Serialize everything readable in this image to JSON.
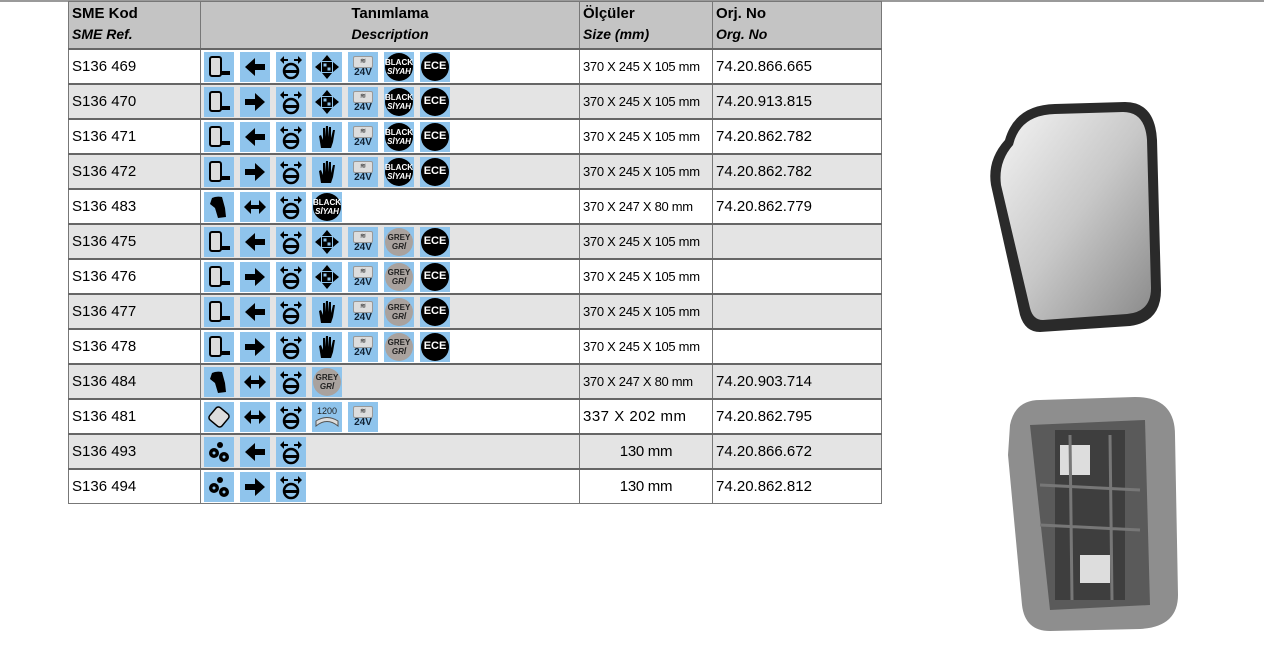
{
  "header": {
    "code": "SME Kod",
    "code_en": "SME Ref.",
    "desc": "Tanımlama",
    "desc_en": "Description",
    "size": "Ölçüler",
    "size_en": "Size (mm)",
    "orig": "Orj. No",
    "orig_en": "Org. No"
  },
  "icon_labels": {
    "v24": "24V",
    "heat": "≋",
    "black": "BLACK",
    "black_tr": "SİYAH",
    "grey": "GREY",
    "grey_tr": "GRİ",
    "ece": "ECE",
    "curve": "1200"
  },
  "colors": {
    "icon_bg": "#8fc4ec",
    "header_bg": "#c4c4c4",
    "stripe": "#e4e4e4"
  },
  "rows": [
    {
      "code": "S136 469",
      "icons": [
        "mirror-arm",
        "arrow-left",
        "steering",
        "electric",
        "heated",
        "black",
        "ece"
      ],
      "size": "370 X 245 X 105 mm",
      "orig": "74.20.866.665"
    },
    {
      "code": "S136 470",
      "icons": [
        "mirror-arm",
        "arrow-right",
        "steering",
        "electric",
        "heated",
        "black",
        "ece"
      ],
      "size": "370 X 245 X 105 mm",
      "orig": "74.20.913.815"
    },
    {
      "code": "S136 471",
      "icons": [
        "mirror-arm",
        "arrow-left",
        "steering",
        "manual",
        "heated",
        "black",
        "ece"
      ],
      "size": "370 X 245 X 105 mm",
      "orig": "74.20.862.782"
    },
    {
      "code": "S136 472",
      "icons": [
        "mirror-arm",
        "arrow-right",
        "steering",
        "manual",
        "heated",
        "black",
        "ece"
      ],
      "size": "370 X 245 X 105 mm",
      "orig": "74.20.862.782"
    },
    {
      "code": "S136 483",
      "icons": [
        "mirror-shape",
        "double-arrow",
        "steering",
        "black"
      ],
      "size": "370 X 247 X 80 mm",
      "orig": "74.20.862.779"
    },
    {
      "code": "S136 475",
      "icons": [
        "mirror-arm",
        "arrow-left",
        "steering",
        "electric",
        "heated",
        "grey",
        "ece"
      ],
      "size": "370 X 245 X 105 mm",
      "orig": ""
    },
    {
      "code": "S136 476",
      "icons": [
        "mirror-arm",
        "arrow-right",
        "steering",
        "electric",
        "heated",
        "grey",
        "ece"
      ],
      "size": "370 X 245 X 105 mm",
      "orig": ""
    },
    {
      "code": "S136 477",
      "icons": [
        "mirror-arm",
        "arrow-left",
        "steering",
        "manual",
        "heated",
        "grey",
        "ece"
      ],
      "size": "370 X 245 X 105 mm",
      "orig": ""
    },
    {
      "code": "S136 478",
      "icons": [
        "mirror-arm",
        "arrow-right",
        "steering",
        "manual",
        "heated",
        "grey",
        "ece"
      ],
      "size": "370 X 245 X 105 mm",
      "orig": ""
    },
    {
      "code": "S136 484",
      "icons": [
        "mirror-shape",
        "double-arrow",
        "steering",
        "grey"
      ],
      "size": "370 X 247 X 80 mm",
      "orig": "74.20.903.714"
    },
    {
      "code": "S136 481",
      "icons": [
        "mirror-glass",
        "double-arrow",
        "steering",
        "curve",
        "heated"
      ],
      "size": "337 X 202 mm",
      "orig": "74.20.862.795"
    },
    {
      "code": "S136 493",
      "icons": [
        "gears",
        "arrow-left",
        "steering"
      ],
      "size": "130 mm",
      "orig": "74.20.866.672"
    },
    {
      "code": "S136 494",
      "icons": [
        "gears",
        "arrow-right",
        "steering"
      ],
      "size": "130 mm",
      "orig": "74.20.862.812"
    }
  ]
}
